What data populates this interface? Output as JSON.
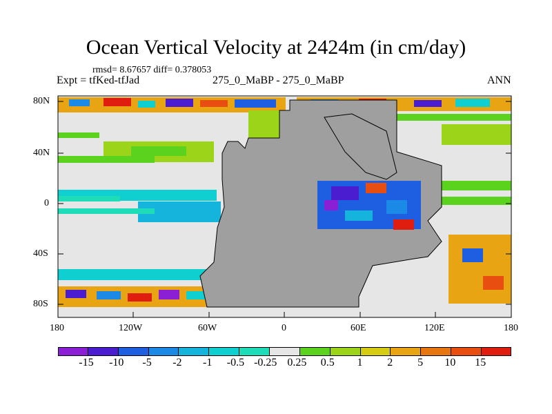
{
  "title": "Ocean Vertical Velocity at 2424m (in cm/day)",
  "stats": "rmsd= 8.67657  diff= 0.378053",
  "expt": "Expt = tfKed-tfJad",
  "subtitle": "275_0_MaBP - 275_0_MaBP",
  "season": "ANN",
  "lat_labels": [
    "80N",
    "40N",
    "0",
    "40S",
    "80S"
  ],
  "lon_labels": [
    "180",
    "120W",
    "60W",
    "0",
    "60E",
    "120E",
    "180"
  ],
  "colorbar": {
    "labels": [
      "-15",
      "-10",
      "-5",
      "-2",
      "-1",
      "-0.5",
      "-0.25",
      "0.25",
      "0.5",
      "1",
      "2",
      "5",
      "10",
      "15"
    ],
    "colors": [
      "#8b1fd6",
      "#4a1ed0",
      "#1e5ee0",
      "#1a8ae6",
      "#15b4dc",
      "#10cfd0",
      "#1fdcb8",
      "#e6e6e6",
      "#5ad21e",
      "#9cd41a",
      "#d7cc14",
      "#e8a412",
      "#e87610",
      "#e84e10",
      "#e01e10"
    ]
  },
  "colors": {
    "land": "#9f9f9f",
    "near_zero": "#e6e6e6",
    "coastline": "#000000"
  }
}
